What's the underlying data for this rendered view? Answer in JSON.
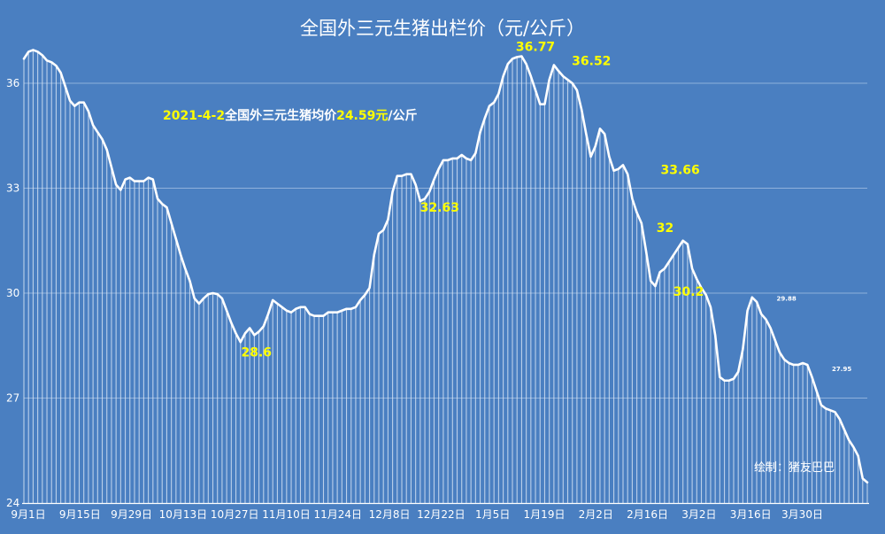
{
  "chart_data": {
    "type": "area",
    "title": "全国外三元生猪出栏价（元/公斤）",
    "subtitle_parts": [
      {
        "text": "2021-4-2",
        "color": "#ffff00"
      },
      {
        "text": "全国外三元生猪均价",
        "color": "#ffffff"
      },
      {
        "text": "24.59元",
        "color": "#ffff00"
      },
      {
        "text": "/公斤",
        "color": "#ffffff"
      }
    ],
    "credit": "绘制：猪友巴巴",
    "x_tick_labels": [
      "9月1日",
      "9月15日",
      "9月29日",
      "10月13日",
      "10月27日",
      "11月10日",
      "11月24日",
      "12月8日",
      "12月22日",
      "1月5日",
      "1月19日",
      "2月2日",
      "2月16日",
      "3月2日",
      "3月16日",
      "3月30日"
    ],
    "y_tick_labels": [
      "24",
      "27",
      "30",
      "33",
      "36"
    ],
    "ylim": [
      24,
      36.7
    ],
    "series": [
      {
        "values": [
          36.7,
          36.9,
          36.95,
          36.9,
          36.8,
          36.65,
          36.6,
          36.5,
          36.3,
          35.9,
          35.5,
          35.35,
          35.45,
          35.45,
          35.2,
          34.8,
          34.6,
          34.4,
          34.1,
          33.6,
          33.1,
          32.95,
          33.25,
          33.3,
          33.2,
          33.2,
          33.2,
          33.3,
          33.25,
          32.7,
          32.55,
          32.45,
          32.0,
          31.55,
          31.1,
          30.7,
          30.35,
          29.85,
          29.7,
          29.85,
          29.97,
          30.0,
          29.97,
          29.85,
          29.5,
          29.15,
          28.85,
          28.6,
          28.85,
          29.0,
          28.8,
          28.9,
          29.05,
          29.4,
          29.8,
          29.7,
          29.6,
          29.5,
          29.45,
          29.55,
          29.6,
          29.6,
          29.4,
          29.35,
          29.35,
          29.35,
          29.45,
          29.45,
          29.45,
          29.5,
          29.55,
          29.55,
          29.6,
          29.8,
          29.95,
          30.15,
          31.1,
          31.7,
          31.8,
          32.1,
          32.9,
          33.35,
          33.35,
          33.4,
          33.4,
          33.1,
          32.63,
          32.7,
          32.9,
          33.25,
          33.55,
          33.8,
          33.8,
          33.85,
          33.85,
          33.95,
          33.85,
          33.8,
          34.0,
          34.6,
          35.0,
          35.35,
          35.45,
          35.7,
          36.2,
          36.55,
          36.7,
          36.75,
          36.77,
          36.55,
          36.2,
          35.8,
          35.4,
          35.4,
          36.1,
          36.52,
          36.35,
          36.2,
          36.1,
          36.0,
          35.8,
          35.25,
          34.55,
          33.9,
          34.2,
          34.7,
          34.55,
          33.9,
          33.5,
          33.55,
          33.66,
          33.4,
          32.7,
          32.3,
          32.0,
          31.2,
          30.35,
          30.2,
          30.6,
          30.7,
          30.9,
          31.1,
          31.3,
          31.5,
          31.4,
          30.7,
          30.4,
          30.15,
          29.95,
          29.6,
          28.8,
          27.6,
          27.5,
          27.5,
          27.55,
          27.75,
          28.4,
          29.5,
          29.88,
          29.75,
          29.4,
          29.25,
          29.0,
          28.65,
          28.3,
          28.1,
          28.0,
          27.95,
          27.95,
          28.0,
          27.95,
          27.6,
          27.2,
          26.8,
          26.7,
          26.65,
          26.6,
          26.4,
          26.1,
          25.8,
          25.6,
          25.35,
          24.7,
          24.59
        ]
      }
    ],
    "annotations": [
      {
        "text": "36.77",
        "x_index": 111,
        "value": 36.77,
        "style": "big"
      },
      {
        "text": "36.52",
        "x_index": 117,
        "value": 36.52,
        "style": "big"
      },
      {
        "text": "32.63",
        "x_index": 86,
        "value": 32.63,
        "style": "big"
      },
      {
        "text": "28.6",
        "x_index": 47,
        "value": 28.6,
        "style": "big"
      },
      {
        "text": "33.66",
        "x_index": 133,
        "value": 33.66,
        "style": "big"
      },
      {
        "text": "32",
        "x_index": 137,
        "value": 32.0,
        "style": "big"
      },
      {
        "text": "30.2",
        "x_index": 140,
        "value": 30.2,
        "style": "big"
      },
      {
        "text": "29.88",
        "x_index": 162,
        "value": 29.88,
        "style": "small"
      },
      {
        "text": "27.95",
        "x_index": 174,
        "value": 27.95,
        "style": "small"
      }
    ],
    "grid": true,
    "colors": {
      "background": "#4a7fc1",
      "line": "#ffffff",
      "fill_stripes": "#ffffff",
      "highlight": "#ffff00"
    }
  }
}
